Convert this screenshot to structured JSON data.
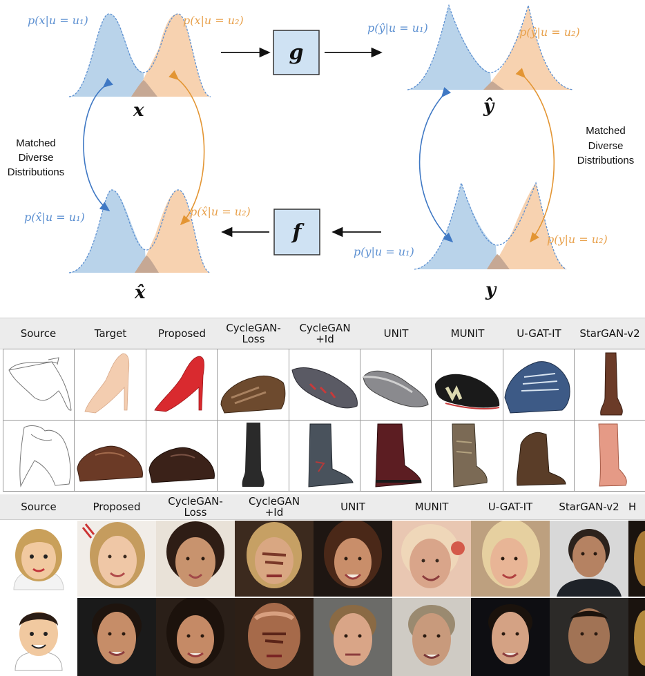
{
  "diagram": {
    "px_u1": "p(x|u = u₁)",
    "px_u2": "p(x|u = u₂)",
    "pyhat_u1": "p(ŷ|u = u₁)",
    "pyhat_u2": "p(ŷ|u = u₂)",
    "pxhat_u1": "p(x̂|u = u₁)",
    "pxhat_u2": "p(x̂|u = u₂)",
    "py_u1": "p(y|u = u₁)",
    "py_u2": "p(y|u = u₂)",
    "var_x": "x",
    "var_yhat": "ŷ",
    "var_xhat": "x̂",
    "var_y": "y",
    "box_g": "g",
    "box_f": "f",
    "left_note": [
      "Matched",
      "Diverse",
      "Distributions"
    ],
    "right_note": [
      "Matched",
      "Diverse",
      "Distributions"
    ],
    "colors": {
      "blue": "#5b8fd1",
      "orange": "#e8a04a",
      "blue_fill": "#b9d3ea",
      "orange_fill": "#f7d2b0",
      "box_fill": "#cfe2f3"
    }
  },
  "shoes": {
    "headers": [
      "Source",
      "Target",
      "Proposed",
      "CycleGAN-\nLoss",
      "CycleGAN\n+Id",
      "UNIT",
      "MUNIT",
      "U-GAT-IT",
      "StarGAN-v2"
    ],
    "rows": [
      [
        "sketch-heel",
        "beige-pump",
        "red-pump",
        "brown-sneaker",
        "grey-sneaker",
        "grey-flat",
        "black-sneaker",
        "blue-sneaker",
        "brown-boot"
      ],
      [
        "sketch-oxford",
        "brown-oxford",
        "dark-oxford",
        "black-boot",
        "grey-boot",
        "maroon-boot",
        "brown-boot",
        "bronze-boot",
        "pink-boot"
      ]
    ]
  },
  "faces": {
    "headers": [
      "Source",
      "Proposed",
      "CycleGAN-\nLoss",
      "CycleGAN\n+Id",
      "UNIT",
      "MUNIT",
      "U-GAT-IT",
      "StarGAN-v2",
      "H"
    ],
    "rows": [
      [
        "cartoon-female",
        "blonde-woman",
        "dark-haired-woman",
        "distorted-face",
        "brunette-woman",
        "blurred-face",
        "blonde-woman",
        "dark-haired-man",
        "partial"
      ],
      [
        "cartoon-male",
        "dark-haired-man",
        "dark-haired-woman",
        "distorted-face",
        "light-haired-man",
        "grey-haired-man",
        "dark-haired-man",
        "bald-man",
        "partial"
      ]
    ]
  }
}
